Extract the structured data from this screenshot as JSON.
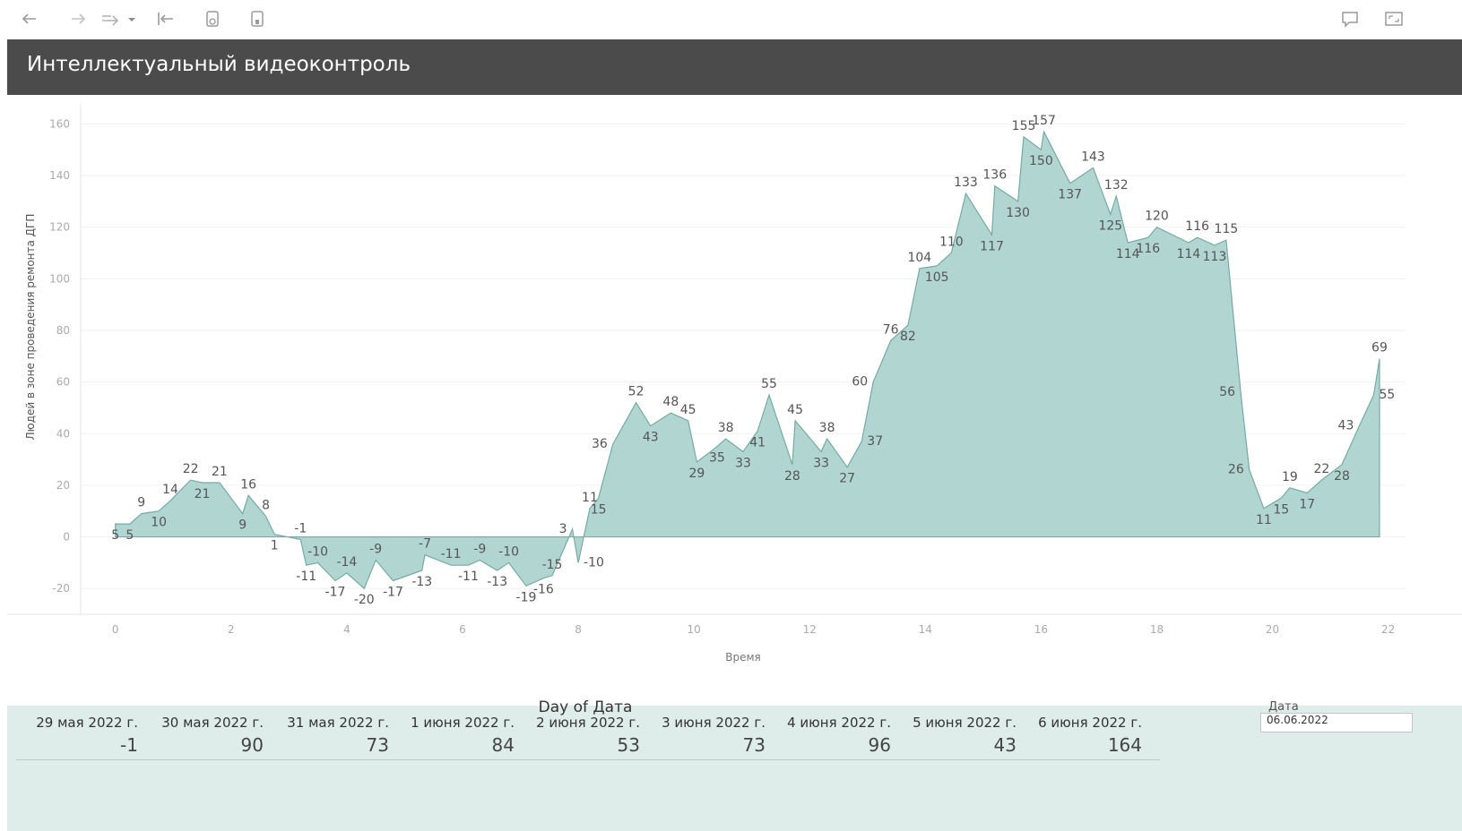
{
  "toolbar": {
    "buttons": [
      "back-icon",
      "forward-icon",
      "redo-icon",
      "dropdown-icon",
      "revert-icon",
      "refresh-icon",
      "pause-icon"
    ],
    "right_buttons": [
      "comment-icon",
      "fullscreen-icon"
    ]
  },
  "header": {
    "title": "Интеллектуальный видеоконтроль"
  },
  "chart_data": {
    "type": "area",
    "color": "#a9d2cd",
    "stroke": "#76aaa4",
    "ylabel": "Людей в зоне проведения ремонта ДГП",
    "xlabel": "Время",
    "xlim": [
      -0.6,
      22.3
    ],
    "ylim": [
      -30,
      165
    ],
    "x_ticks": [
      0,
      2,
      4,
      6,
      8,
      10,
      12,
      14,
      16,
      18,
      20,
      22
    ],
    "y_ticks": [
      -20,
      0,
      20,
      40,
      60,
      80,
      100,
      120,
      140,
      160
    ],
    "points": [
      {
        "x": 0.0,
        "y": 5,
        "label": "5",
        "pos": "below"
      },
      {
        "x": 0.25,
        "y": 5,
        "label": "5",
        "pos": "below"
      },
      {
        "x": 0.45,
        "y": 9,
        "label": "9",
        "pos": "above"
      },
      {
        "x": 0.75,
        "y": 10,
        "label": "10",
        "pos": "below"
      },
      {
        "x": 0.95,
        "y": 14,
        "label": "14",
        "pos": "above"
      },
      {
        "x": 1.3,
        "y": 22,
        "label": "22",
        "pos": "above"
      },
      {
        "x": 1.5,
        "y": 21,
        "label": "21",
        "pos": "below"
      },
      {
        "x": 1.8,
        "y": 21,
        "label": "21",
        "pos": "above"
      },
      {
        "x": 2.2,
        "y": 9,
        "label": "9",
        "pos": "below"
      },
      {
        "x": 2.3,
        "y": 16,
        "label": "16",
        "pos": "above"
      },
      {
        "x": 2.6,
        "y": 8,
        "label": "8",
        "pos": "above"
      },
      {
        "x": 2.75,
        "y": 1,
        "label": "1",
        "pos": "below"
      },
      {
        "x": 3.2,
        "y": -1,
        "label": "-1",
        "pos": "above"
      },
      {
        "x": 3.3,
        "y": -11,
        "label": "-11",
        "pos": "below"
      },
      {
        "x": 3.5,
        "y": -10,
        "label": "-10",
        "pos": "above"
      },
      {
        "x": 3.8,
        "y": -17,
        "label": "-17",
        "pos": "below"
      },
      {
        "x": 4.0,
        "y": -14,
        "label": "-14",
        "pos": "above"
      },
      {
        "x": 4.3,
        "y": -20,
        "label": "-20",
        "pos": "below"
      },
      {
        "x": 4.5,
        "y": -9,
        "label": "-9",
        "pos": "above"
      },
      {
        "x": 4.8,
        "y": -17,
        "label": "-17",
        "pos": "below"
      },
      {
        "x": 5.3,
        "y": -13,
        "label": "-13",
        "pos": "below"
      },
      {
        "x": 5.35,
        "y": -7,
        "label": "-7",
        "pos": "above"
      },
      {
        "x": 5.8,
        "y": -11,
        "label": "-11",
        "pos": "above"
      },
      {
        "x": 6.1,
        "y": -11,
        "label": "-11",
        "pos": "below"
      },
      {
        "x": 6.3,
        "y": -9,
        "label": "-9",
        "pos": "above"
      },
      {
        "x": 6.6,
        "y": -13,
        "label": "-13",
        "pos": "below"
      },
      {
        "x": 6.8,
        "y": -10,
        "label": "-10",
        "pos": "above"
      },
      {
        "x": 7.1,
        "y": -19,
        "label": "-19",
        "pos": "below"
      },
      {
        "x": 7.4,
        "y": -16,
        "label": "-16",
        "pos": "below"
      },
      {
        "x": 7.55,
        "y": -15,
        "label": "-15",
        "pos": "above"
      },
      {
        "x": 7.9,
        "y": 3,
        "label": "3",
        "pos": "left"
      },
      {
        "x": 8.0,
        "y": -10,
        "label": "-10",
        "pos": "right"
      },
      {
        "x": 8.2,
        "y": 11,
        "label": "11",
        "pos": "above"
      },
      {
        "x": 8.35,
        "y": 15,
        "label": "15",
        "pos": "below"
      },
      {
        "x": 8.6,
        "y": 36,
        "label": "36",
        "pos": "left"
      },
      {
        "x": 9.0,
        "y": 52,
        "label": "52",
        "pos": "above"
      },
      {
        "x": 9.25,
        "y": 43,
        "label": "43",
        "pos": "below"
      },
      {
        "x": 9.6,
        "y": 48,
        "label": "48",
        "pos": "above"
      },
      {
        "x": 9.9,
        "y": 45,
        "label": "45",
        "pos": "above"
      },
      {
        "x": 10.05,
        "y": 29,
        "label": "29",
        "pos": "below"
      },
      {
        "x": 10.4,
        "y": 35,
        "label": "35",
        "pos": "below"
      },
      {
        "x": 10.55,
        "y": 38,
        "label": "38",
        "pos": "above"
      },
      {
        "x": 10.85,
        "y": 33,
        "label": "33",
        "pos": "below"
      },
      {
        "x": 11.1,
        "y": 41,
        "label": "41",
        "pos": "below"
      },
      {
        "x": 11.3,
        "y": 55,
        "label": "55",
        "pos": "above"
      },
      {
        "x": 11.7,
        "y": 28,
        "label": "28",
        "pos": "below"
      },
      {
        "x": 11.75,
        "y": 45,
        "label": "45",
        "pos": "above"
      },
      {
        "x": 12.2,
        "y": 33,
        "label": "33",
        "pos": "below"
      },
      {
        "x": 12.3,
        "y": 38,
        "label": "38",
        "pos": "above"
      },
      {
        "x": 12.65,
        "y": 27,
        "label": "27",
        "pos": "below"
      },
      {
        "x": 12.9,
        "y": 37,
        "label": "37",
        "pos": "right"
      },
      {
        "x": 13.1,
        "y": 60,
        "label": "60",
        "pos": "left"
      },
      {
        "x": 13.4,
        "y": 76,
        "label": "76",
        "pos": "above"
      },
      {
        "x": 13.7,
        "y": 82,
        "label": "82",
        "pos": "below"
      },
      {
        "x": 13.9,
        "y": 104,
        "label": "104",
        "pos": "above"
      },
      {
        "x": 14.2,
        "y": 105,
        "label": "105",
        "pos": "below"
      },
      {
        "x": 14.45,
        "y": 110,
        "label": "110",
        "pos": "above"
      },
      {
        "x": 14.7,
        "y": 133,
        "label": "133",
        "pos": "above"
      },
      {
        "x": 15.15,
        "y": 117,
        "label": "117",
        "pos": "below"
      },
      {
        "x": 15.2,
        "y": 136,
        "label": "136",
        "pos": "above"
      },
      {
        "x": 15.6,
        "y": 130,
        "label": "130",
        "pos": "below"
      },
      {
        "x": 15.7,
        "y": 155,
        "label": "155",
        "pos": "above"
      },
      {
        "x": 16.0,
        "y": 150,
        "label": "150",
        "pos": "below"
      },
      {
        "x": 16.05,
        "y": 157,
        "label": "157",
        "pos": "above"
      },
      {
        "x": 16.5,
        "y": 137,
        "label": "137",
        "pos": "below"
      },
      {
        "x": 16.9,
        "y": 143,
        "label": "143",
        "pos": "above"
      },
      {
        "x": 17.2,
        "y": 125,
        "label": "125",
        "pos": "below"
      },
      {
        "x": 17.3,
        "y": 132,
        "label": "132",
        "pos": "above"
      },
      {
        "x": 17.5,
        "y": 114,
        "label": "114",
        "pos": "below"
      },
      {
        "x": 17.85,
        "y": 116,
        "label": "116",
        "pos": "below"
      },
      {
        "x": 18.0,
        "y": 120,
        "label": "120",
        "pos": "above"
      },
      {
        "x": 18.55,
        "y": 114,
        "label": "114",
        "pos": "below"
      },
      {
        "x": 18.7,
        "y": 116,
        "label": "116",
        "pos": "above"
      },
      {
        "x": 19.0,
        "y": 113,
        "label": "113",
        "pos": "below"
      },
      {
        "x": 19.2,
        "y": 115,
        "label": "115",
        "pos": "above"
      },
      {
        "x": 19.45,
        "y": 56,
        "label": "56",
        "pos": "left"
      },
      {
        "x": 19.6,
        "y": 26,
        "label": "26",
        "pos": "left"
      },
      {
        "x": 19.85,
        "y": 11,
        "label": "11",
        "pos": "below"
      },
      {
        "x": 20.15,
        "y": 15,
        "label": "15",
        "pos": "below"
      },
      {
        "x": 20.3,
        "y": 19,
        "label": "19",
        "pos": "above"
      },
      {
        "x": 20.6,
        "y": 17,
        "label": "17",
        "pos": "below"
      },
      {
        "x": 20.85,
        "y": 22,
        "label": "22",
        "pos": "above"
      },
      {
        "x": 21.2,
        "y": 28,
        "label": "28",
        "pos": "below"
      },
      {
        "x": 21.5,
        "y": 43,
        "label": "43",
        "pos": "left"
      },
      {
        "x": 21.75,
        "y": 55,
        "label": "55",
        "pos": "right"
      },
      {
        "x": 21.85,
        "y": 69,
        "label": "69",
        "pos": "above"
      }
    ]
  },
  "day_table": {
    "header": "Day of Дата",
    "columns": [
      "29 мая 2022 г.",
      "30 мая 2022 г.",
      "31 мая 2022 г.",
      "1 июня 2022 г.",
      "2 июня 2022 г.",
      "3 июня 2022 г.",
      "4 июня 2022 г.",
      "5 июня 2022 г.",
      "6 июня 2022 г."
    ],
    "values": [
      "-1",
      "90",
      "73",
      "84",
      "53",
      "73",
      "96",
      "43",
      "164"
    ]
  },
  "date_filter": {
    "label": "Дата",
    "value": "06.06.2022"
  }
}
